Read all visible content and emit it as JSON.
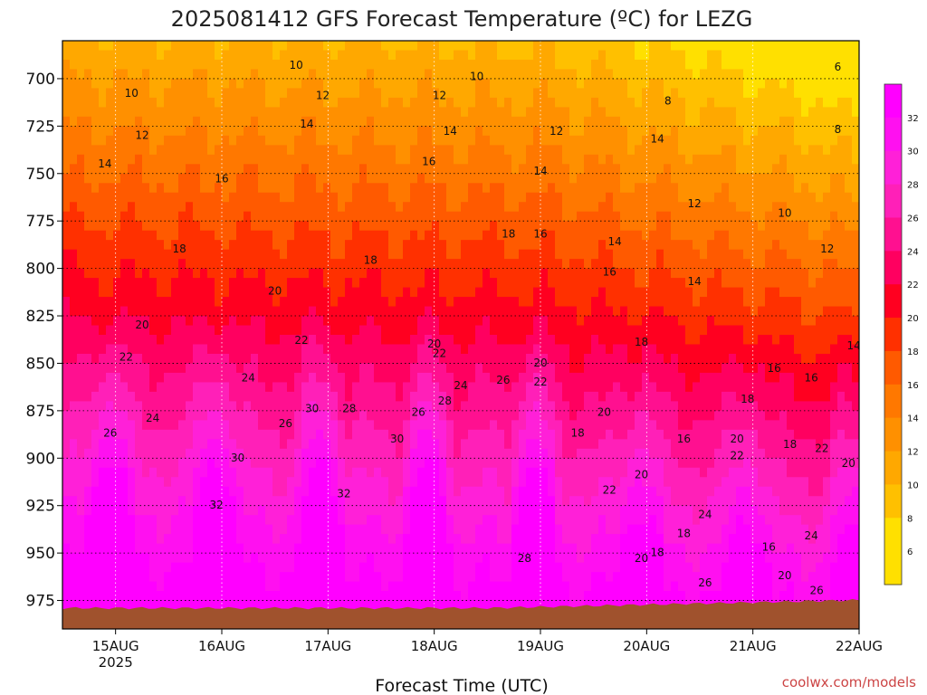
{
  "chart_data": {
    "type": "heatmap",
    "title": "2025081412 GFS Forecast Temperature (ºC) for LEZG",
    "xlabel": "Forecast Time (UTC)",
    "ylabel": "",
    "x_ticks": [
      "15AUG\n2025",
      "16AUG",
      "17AUG",
      "18AUG",
      "19AUG",
      "20AUG",
      "21AUG",
      "22AUG"
    ],
    "y_ticks": [
      700,
      725,
      750,
      775,
      800,
      825,
      850,
      875,
      900,
      925,
      950,
      975
    ],
    "y_range_hPa": [
      680,
      990
    ],
    "x_range_days": [
      14.5,
      22.0
    ],
    "colorbar_ticks": [
      6,
      8,
      10,
      12,
      14,
      16,
      18,
      20,
      22,
      24,
      26,
      28,
      30,
      32
    ],
    "contour_interval_C": 2,
    "colors": {
      "6": "#ffe000",
      "8": "#ffc000",
      "10": "#ffa800",
      "12": "#ff9000",
      "14": "#ff7800",
      "16": "#ff5a00",
      "18": "#ff3000",
      "20": "#ff0020",
      "22": "#ff0060",
      "24": "#ff1090",
      "26": "#ff20b8",
      "28": "#ff20d8",
      "30": "#ff10f0",
      "32": "#ff00ff",
      "ground": "#a0522d"
    },
    "contour_labels": [
      {
        "value": 10,
        "day": 15.15,
        "p": 708
      },
      {
        "value": 10,
        "day": 16.7,
        "p": 693
      },
      {
        "value": 10,
        "day": 18.4,
        "p": 699
      },
      {
        "value": 6,
        "day": 21.8,
        "p": 694
      },
      {
        "value": 8,
        "day": 20.2,
        "p": 712
      },
      {
        "value": 8,
        "day": 21.8,
        "p": 727
      },
      {
        "value": 12,
        "day": 15.25,
        "p": 730
      },
      {
        "value": 12,
        "day": 16.95,
        "p": 709
      },
      {
        "value": 12,
        "day": 18.05,
        "p": 709
      },
      {
        "value": 12,
        "day": 19.15,
        "p": 728
      },
      {
        "value": 12,
        "day": 20.45,
        "p": 766
      },
      {
        "value": 12,
        "day": 21.7,
        "p": 790
      },
      {
        "value": 14,
        "day": 14.9,
        "p": 745
      },
      {
        "value": 14,
        "day": 16.8,
        "p": 724
      },
      {
        "value": 14,
        "day": 18.15,
        "p": 728
      },
      {
        "value": 14,
        "day": 19.0,
        "p": 749
      },
      {
        "value": 14,
        "day": 19.7,
        "p": 786
      },
      {
        "value": 14,
        "day": 20.1,
        "p": 732
      },
      {
        "value": 14,
        "day": 20.45,
        "p": 807
      },
      {
        "value": 14,
        "day": 21.95,
        "p": 841
      },
      {
        "value": 10,
        "day": 21.3,
        "p": 771
      },
      {
        "value": 16,
        "day": 16.0,
        "p": 753
      },
      {
        "value": 16,
        "day": 17.95,
        "p": 744
      },
      {
        "value": 16,
        "day": 19.0,
        "p": 782
      },
      {
        "value": 16,
        "day": 19.65,
        "p": 802
      },
      {
        "value": 16,
        "day": 21.2,
        "p": 853
      },
      {
        "value": 16,
        "day": 21.55,
        "p": 858
      },
      {
        "value": 16,
        "day": 20.35,
        "p": 890
      },
      {
        "value": 16,
        "day": 21.15,
        "p": 947
      },
      {
        "value": 18,
        "day": 15.6,
        "p": 790
      },
      {
        "value": 18,
        "day": 17.4,
        "p": 796
      },
      {
        "value": 18,
        "day": 18.7,
        "p": 782
      },
      {
        "value": 18,
        "day": 19.95,
        "p": 839
      },
      {
        "value": 18,
        "day": 19.35,
        "p": 887
      },
      {
        "value": 18,
        "day": 20.95,
        "p": 869
      },
      {
        "value": 18,
        "day": 20.1,
        "p": 950
      },
      {
        "value": 18,
        "day": 20.35,
        "p": 940
      },
      {
        "value": 18,
        "day": 21.35,
        "p": 893
      },
      {
        "value": 20,
        "day": 15.25,
        "p": 830
      },
      {
        "value": 20,
        "day": 16.5,
        "p": 812
      },
      {
        "value": 20,
        "day": 18.0,
        "p": 840
      },
      {
        "value": 20,
        "day": 19.0,
        "p": 850
      },
      {
        "value": 20,
        "day": 19.6,
        "p": 876
      },
      {
        "value": 20,
        "day": 19.95,
        "p": 909
      },
      {
        "value": 20,
        "day": 19.95,
        "p": 953
      },
      {
        "value": 20,
        "day": 20.85,
        "p": 890
      },
      {
        "value": 20,
        "day": 21.3,
        "p": 962
      },
      {
        "value": 20,
        "day": 21.9,
        "p": 903
      },
      {
        "value": 22,
        "day": 15.1,
        "p": 847
      },
      {
        "value": 22,
        "day": 16.75,
        "p": 838
      },
      {
        "value": 22,
        "day": 18.05,
        "p": 845
      },
      {
        "value": 22,
        "day": 19.0,
        "p": 860
      },
      {
        "value": 22,
        "day": 19.65,
        "p": 917
      },
      {
        "value": 22,
        "day": 20.85,
        "p": 899
      },
      {
        "value": 22,
        "day": 21.65,
        "p": 895
      },
      {
        "value": 24,
        "day": 15.35,
        "p": 879
      },
      {
        "value": 24,
        "day": 16.25,
        "p": 858
      },
      {
        "value": 24,
        "day": 18.25,
        "p": 862
      },
      {
        "value": 24,
        "day": 20.55,
        "p": 930
      },
      {
        "value": 24,
        "day": 21.55,
        "p": 941
      },
      {
        "value": 26,
        "day": 14.95,
        "p": 887
      },
      {
        "value": 26,
        "day": 16.6,
        "p": 882
      },
      {
        "value": 26,
        "day": 17.85,
        "p": 876
      },
      {
        "value": 26,
        "day": 18.65,
        "p": 859
      },
      {
        "value": 26,
        "day": 20.55,
        "p": 966
      },
      {
        "value": 26,
        "day": 21.6,
        "p": 970
      },
      {
        "value": 28,
        "day": 17.2,
        "p": 874
      },
      {
        "value": 28,
        "day": 18.1,
        "p": 870
      },
      {
        "value": 28,
        "day": 18.85,
        "p": 953
      },
      {
        "value": 30,
        "day": 16.15,
        "p": 900
      },
      {
        "value": 30,
        "day": 16.85,
        "p": 874
      },
      {
        "value": 30,
        "day": 17.65,
        "p": 890
      },
      {
        "value": 32,
        "day": 15.95,
        "p": 925
      },
      {
        "value": 32,
        "day": 17.15,
        "p": 919
      }
    ],
    "grid": true,
    "legend": "colorbar-right"
  },
  "credit": "coolwx.com/models"
}
